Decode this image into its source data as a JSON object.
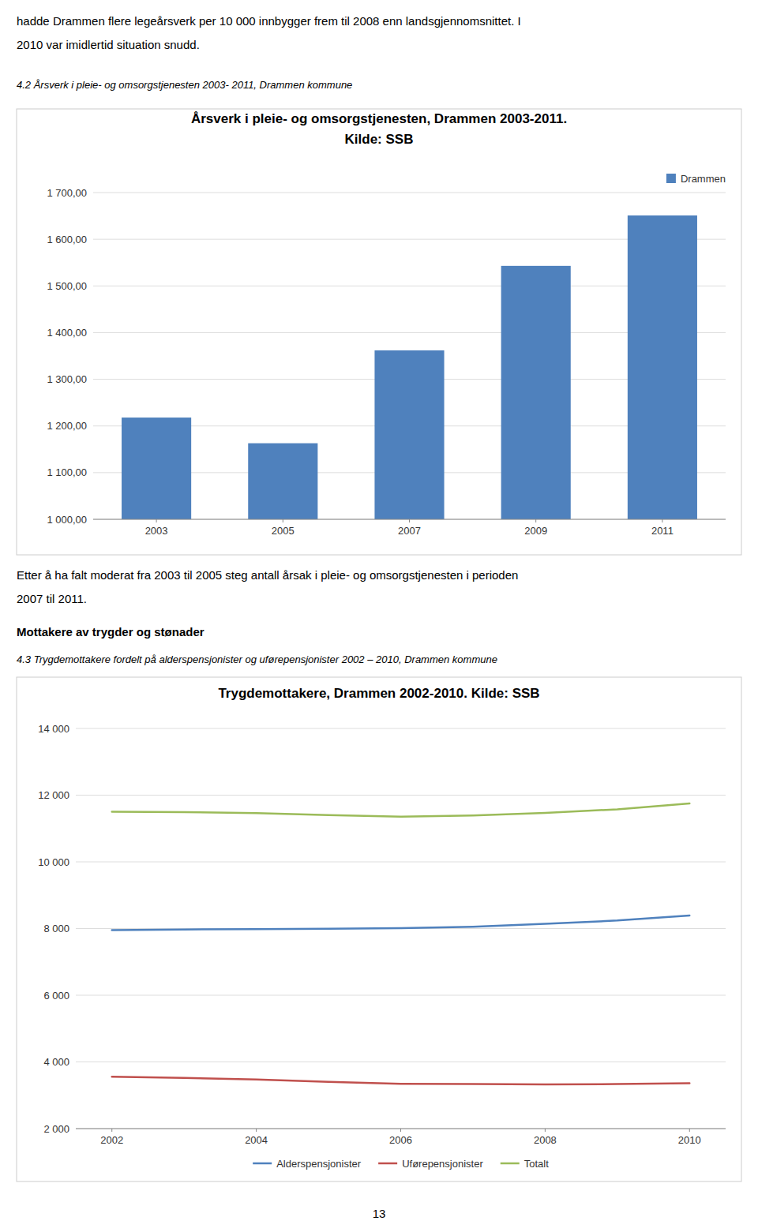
{
  "page": {
    "intro": [
      "hadde Drammen flere legeårsverk per 10 000 innbygger frem til 2008 enn landsgjennomsnittet. I",
      "2010 var imidlertid situation snudd."
    ],
    "caption1": "4.2 Årsverk i pleie- og omsorgstjenesten 2003- 2011, Drammen kommune",
    "between": [
      "Etter å ha falt moderat fra 2003 til 2005 steg antall årsak i pleie- og omsorgstjenesten i perioden",
      "2007 til 2011."
    ],
    "heading": "Mottakere av trygder og stønader",
    "caption2": "4.3 Trygdemottakere fordelt på alderspensjonister og uførepensjonister 2002 – 2010, Drammen kommune",
    "page_number": "13"
  },
  "chart_data": [
    {
      "type": "bar",
      "title": "Årsverk i pleie- og omsorgstjenesten, Drammen 2003-2011.",
      "subtitle": "Kilde: SSB",
      "categories": [
        "2003",
        "2005",
        "2007",
        "2009",
        "2011"
      ],
      "series": [
        {
          "name": "Drammen",
          "color": "#4f81bd",
          "values": [
            1218,
            1163,
            1362,
            1543,
            1651
          ]
        }
      ],
      "ylim": [
        1000,
        1700
      ],
      "yticks": [
        {
          "value": 1000,
          "label": "1 000,00"
        },
        {
          "value": 1100,
          "label": "1 100,00"
        },
        {
          "value": 1200,
          "label": "1 200,00"
        },
        {
          "value": 1300,
          "label": "1 300,00"
        },
        {
          "value": 1400,
          "label": "1 400,00"
        },
        {
          "value": 1500,
          "label": "1 500,00"
        },
        {
          "value": 1600,
          "label": "1 600,00"
        },
        {
          "value": 1700,
          "label": "1 700,00"
        }
      ],
      "grid": true,
      "legend": "upper right"
    },
    {
      "type": "line",
      "title": "Trygdemottakere, Drammen 2002-2010. Kilde: SSB",
      "x": [
        2002,
        2003,
        2004,
        2005,
        2006,
        2007,
        2008,
        2009,
        2010
      ],
      "series": [
        {
          "name": "Alderspensjonister",
          "color": "#4f81bd",
          "values": [
            7950,
            7970,
            7985,
            7995,
            8010,
            8055,
            8140,
            8240,
            8390
          ]
        },
        {
          "name": "Uførepensjonister",
          "color": "#c0504d",
          "values": [
            3555,
            3520,
            3475,
            3405,
            3345,
            3335,
            3325,
            3335,
            3360
          ]
        },
        {
          "name": "Totalt",
          "color": "#9bbb59",
          "values": [
            11505,
            11490,
            11460,
            11400,
            11355,
            11390,
            11465,
            11575,
            11750
          ]
        }
      ],
      "xlim": [
        2001.5,
        2010.5
      ],
      "xticks": [
        2002,
        2004,
        2006,
        2008,
        2010
      ],
      "ylim": [
        2000,
        14000
      ],
      "yticks": [
        {
          "value": 2000,
          "label": "2 000"
        },
        {
          "value": 4000,
          "label": "4 000"
        },
        {
          "value": 6000,
          "label": "6 000"
        },
        {
          "value": 8000,
          "label": "8 000"
        },
        {
          "value": 10000,
          "label": "10 000"
        },
        {
          "value": 12000,
          "label": "12 000"
        },
        {
          "value": 14000,
          "label": "14 000"
        }
      ],
      "grid": true,
      "legend": "lower center"
    }
  ]
}
